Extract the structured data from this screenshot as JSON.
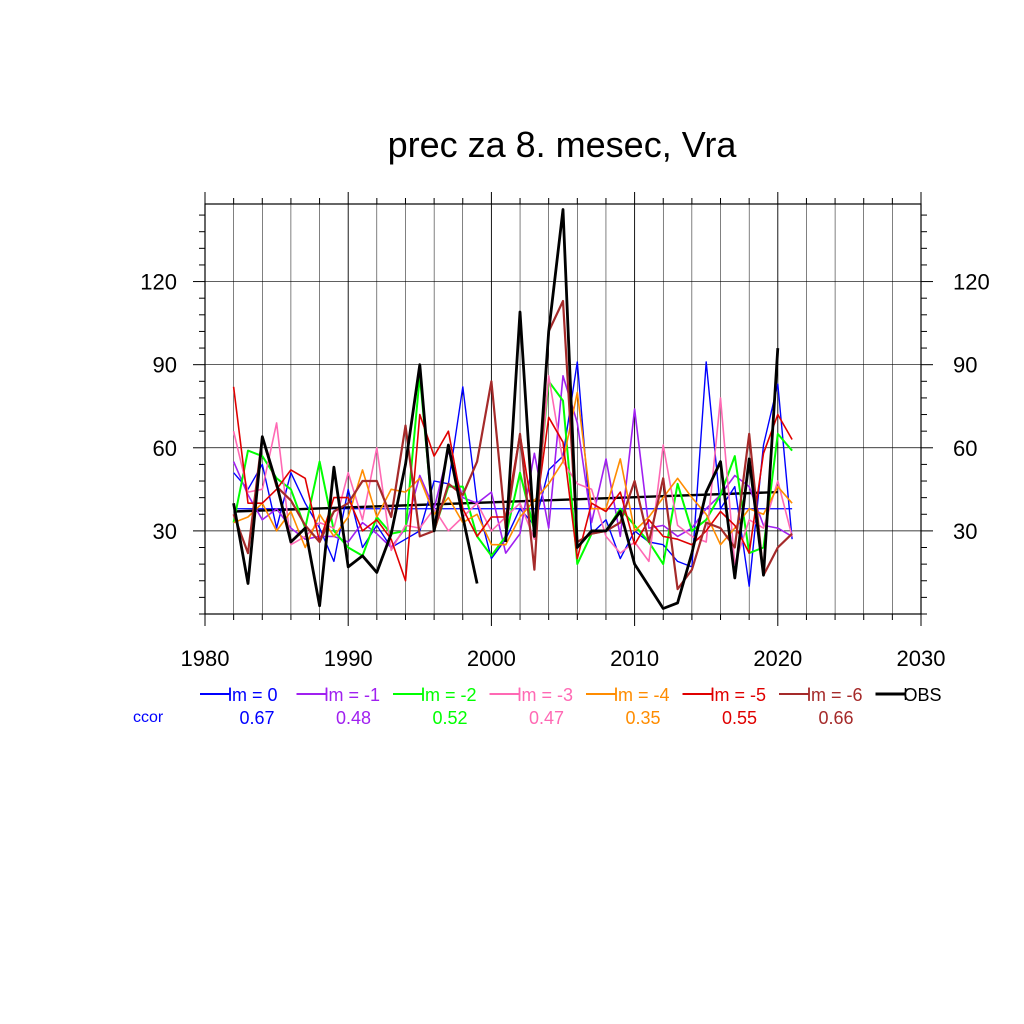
{
  "chart_data": {
    "type": "line",
    "title": "prec za 8. mesec, Vra",
    "xlabel": "",
    "ylabel": "",
    "xlim": [
      1980,
      2030
    ],
    "ylim": [
      0,
      148
    ],
    "x_ticks": [
      "1980",
      "1990",
      "2000",
      "2010",
      "2020",
      "2030"
    ],
    "y_ticks": [
      "30",
      "60",
      "90",
      "120"
    ],
    "grid": true,
    "legend_position": "bottom",
    "ccor_label": "ccor",
    "years": [
      1982,
      1983,
      1984,
      1985,
      1986,
      1987,
      1988,
      1989,
      1990,
      1991,
      1992,
      1993,
      1994,
      1995,
      1996,
      1997,
      1998,
      1999,
      2000,
      2001,
      2002,
      2003,
      2004,
      2005,
      2006,
      2007,
      2008,
      2009,
      2010,
      2011,
      2012,
      2013,
      2014,
      2015,
      2016,
      2017,
      2018,
      2019,
      2020,
      2021
    ],
    "series": [
      {
        "name": "lm = 0",
        "ccor": "0.67",
        "color": "#0000ff",
        "width": 1.4,
        "values": [
          51,
          45,
          54,
          31,
          51,
          40,
          31,
          19,
          45,
          24,
          32,
          24,
          27,
          30,
          48,
          47,
          82,
          40,
          20,
          27,
          38,
          32,
          52,
          57,
          91,
          29,
          34,
          20,
          30,
          26,
          25,
          19,
          17,
          91,
          38,
          46,
          10,
          61,
          83,
          27
        ]
      },
      {
        "name": "lm = -1",
        "ccor": "0.48",
        "color": "#a020f0",
        "width": 1.6,
        "values": [
          55,
          43,
          34,
          38,
          31,
          27,
          28,
          28,
          26,
          33,
          29,
          24,
          31,
          50,
          38,
          59,
          42,
          40,
          44,
          22,
          29,
          58,
          31,
          86,
          69,
          33,
          56,
          28,
          74,
          31,
          32,
          28,
          31,
          38,
          43,
          50,
          46,
          32,
          31,
          28
        ]
      },
      {
        "name": "lm = -2",
        "ccor": "0.52",
        "color": "#00ff00",
        "width": 2.0,
        "values": [
          33,
          59,
          57,
          49,
          45,
          31,
          55,
          30,
          24,
          21,
          35,
          29,
          30,
          86,
          30,
          46,
          46,
          28,
          21,
          28,
          51,
          30,
          84,
          77,
          18,
          29,
          30,
          38,
          32,
          26,
          18,
          47,
          30,
          34,
          43,
          57,
          22,
          24,
          65,
          59
        ]
      },
      {
        "name": "lm = -3",
        "ccor": "0.47",
        "color": "#ff69b4",
        "width": 1.6,
        "values": [
          66,
          44,
          45,
          69,
          25,
          28,
          33,
          31,
          51,
          34,
          60,
          23,
          32,
          31,
          38,
          30,
          35,
          40,
          30,
          35,
          40,
          27,
          86,
          55,
          47,
          45,
          28,
          22,
          26,
          19,
          61,
          32,
          28,
          26,
          78,
          18,
          34,
          31,
          48,
          28
        ]
      },
      {
        "name": "lm = -4",
        "ccor": "0.35",
        "color": "#ff8c00",
        "width": 1.6,
        "values": [
          33,
          35,
          40,
          30,
          37,
          24,
          36,
          28,
          35,
          52,
          35,
          45,
          44,
          49,
          36,
          42,
          33,
          36,
          25,
          25,
          35,
          41,
          47,
          55,
          80,
          38,
          38,
          56,
          30,
          35,
          42,
          49,
          42,
          36,
          25,
          31,
          38,
          36,
          46,
          40
        ]
      },
      {
        "name": "lm = -5",
        "ccor": "0.55",
        "color": "#e00000",
        "width": 1.6,
        "values": [
          82,
          40,
          40,
          45,
          52,
          49,
          26,
          42,
          42,
          30,
          34,
          27,
          12,
          72,
          57,
          66,
          38,
          28,
          35,
          35,
          65,
          33,
          71,
          62,
          20,
          40,
          37,
          44,
          25,
          34,
          28,
          27,
          25,
          30,
          37,
          32,
          22,
          58,
          72,
          63
        ]
      },
      {
        "name": "lm = -6",
        "ccor": "0.66",
        "color": "#a52a2a",
        "width": 2.2,
        "values": [
          36,
          22,
          64,
          46,
          41,
          32,
          26,
          37,
          40,
          48,
          48,
          35,
          68,
          28,
          30,
          47,
          43,
          55,
          84,
          31,
          65,
          16,
          102,
          113,
          26,
          29,
          30,
          33,
          48,
          26,
          49,
          9,
          16,
          33,
          31,
          24,
          65,
          14,
          24,
          29
        ]
      },
      {
        "name": "OBS",
        "ccor": "",
        "color": "#000000",
        "width": 2.8,
        "values": [
          40,
          11,
          64,
          47,
          26,
          31,
          3,
          53,
          17,
          21,
          15,
          29,
          54,
          90,
          30,
          61,
          35,
          11,
          null,
          26,
          109,
          28,
          102,
          146,
          24,
          30,
          30,
          37,
          18,
          10,
          2,
          4,
          22,
          44,
          55,
          13,
          56,
          14,
          96,
          null
        ]
      }
    ],
    "trend_lines": [
      {
        "series": "lm = 0",
        "color": "#0000ff",
        "from": [
          1982,
          38
        ],
        "to": [
          2021,
          38
        ]
      },
      {
        "series": "OBS",
        "color": "#000000",
        "from": [
          1982,
          37
        ],
        "to": [
          2020,
          44
        ]
      }
    ]
  }
}
